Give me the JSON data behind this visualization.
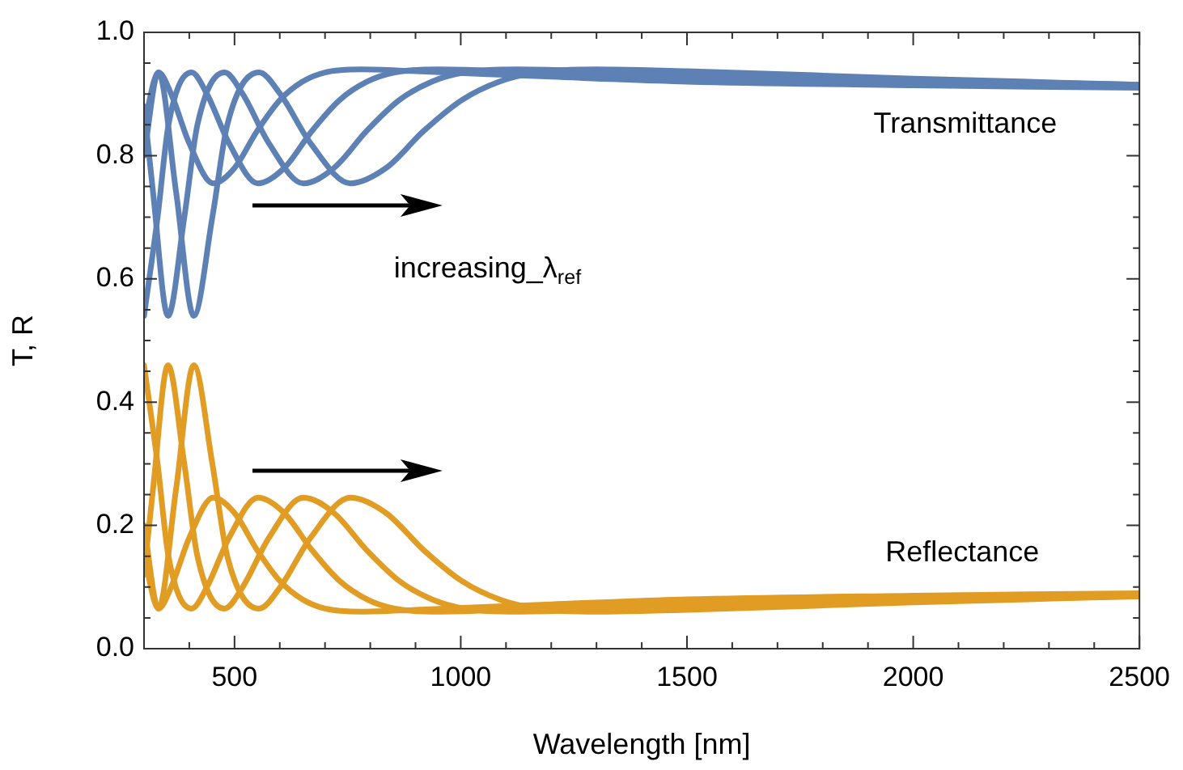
{
  "chart_data": {
    "type": "line",
    "xlabel": "Wavelength [nm]",
    "ylabel": "T, R",
    "xlim": [
      300,
      2500
    ],
    "ylim": [
      0,
      1
    ],
    "xticks": [
      {
        "value": 300,
        "label": null
      },
      {
        "value": 400,
        "label": null
      },
      500,
      {
        "value": 600,
        "label": null
      },
      {
        "value": 700,
        "label": null
      },
      {
        "value": 800,
        "label": null
      },
      {
        "value": 900,
        "label": null
      },
      1000,
      {
        "value": 1100,
        "label": null
      },
      {
        "value": 1200,
        "label": null
      },
      {
        "value": 1300,
        "label": null
      },
      {
        "value": 1400,
        "label": null
      },
      1500,
      {
        "value": 1600,
        "label": null
      },
      {
        "value": 1700,
        "label": null
      },
      {
        "value": 1800,
        "label": null
      },
      {
        "value": 1900,
        "label": null
      },
      2000,
      {
        "value": 2100,
        "label": null
      },
      {
        "value": 2200,
        "label": null
      },
      {
        "value": 2300,
        "label": null
      },
      {
        "value": 2400,
        "label": null
      },
      2500
    ],
    "yticks": [
      {
        "value": 0,
        "label": "0.0"
      },
      {
        "value": 0.05,
        "label": null
      },
      {
        "value": 0.1,
        "label": null
      },
      {
        "value": 0.15,
        "label": null
      },
      {
        "value": 0.2,
        "label": "0.2"
      },
      {
        "value": 0.25,
        "label": null
      },
      {
        "value": 0.3,
        "label": null
      },
      {
        "value": 0.35,
        "label": null
      },
      {
        "value": 0.4,
        "label": "0.4"
      },
      {
        "value": 0.45,
        "label": null
      },
      {
        "value": 0.5,
        "label": null
      },
      {
        "value": 0.55,
        "label": null
      },
      {
        "value": 0.6,
        "label": "0.6"
      },
      {
        "value": 0.65,
        "label": null
      },
      {
        "value": 0.7,
        "label": null
      },
      {
        "value": 0.75,
        "label": null
      },
      {
        "value": 0.8,
        "label": "0.8"
      },
      {
        "value": 0.85,
        "label": null
      },
      {
        "value": 0.9,
        "label": null
      },
      {
        "value": 0.95,
        "label": null
      },
      {
        "value": 1,
        "label": "1.0"
      }
    ],
    "grid": false,
    "legend": false,
    "marker": "none",
    "line_style": "solid",
    "series": [
      {
        "color": "#5e81b5",
        "x": [
          300,
          332,
          360,
          400,
          453,
          500,
          550,
          600,
          650,
          700,
          780,
          900,
          1200,
          1500,
          2000,
          2500
        ],
        "values": [
          0.85,
          0.935,
          0.9,
          0.82,
          0.755,
          0.78,
          0.84,
          0.89,
          0.92,
          0.935,
          0.94,
          0.937,
          0.928,
          0.92,
          0.914,
          0.91
        ]
      },
      {
        "color": "#5e81b5",
        "x": [
          300,
          330,
          354,
          405,
          439,
          488,
          552,
          610,
          671,
          732,
          793,
          854,
          950,
          1100,
          1460,
          1830,
          2440,
          2500
        ],
        "values": [
          0.54,
          0.7,
          0.85,
          0.935,
          0.9,
          0.82,
          0.755,
          0.78,
          0.84,
          0.89,
          0.92,
          0.935,
          0.94,
          0.937,
          0.928,
          0.92,
          0.914,
          0.913
        ]
      },
      {
        "color": "#5e81b5",
        "x": [
          300,
          320,
          353,
          389,
          418,
          478,
          518,
          576,
          652,
          720,
          792,
          864,
          936,
          1008,
          1123,
          1296,
          1728,
          2160,
          2500
        ],
        "values": [
          0.88,
          0.74,
          0.54,
          0.7,
          0.85,
          0.935,
          0.9,
          0.82,
          0.755,
          0.78,
          0.84,
          0.89,
          0.92,
          0.935,
          0.94,
          0.937,
          0.928,
          0.92,
          0.915
        ]
      },
      {
        "color": "#5e81b5",
        "x": [
          300,
          332,
          371,
          410,
          451,
          484,
          554,
          601,
          668,
          756,
          835,
          918,
          1002,
          1085,
          1169,
          1300,
          1500,
          2000,
          2500
        ],
        "values": [
          0.8,
          0.935,
          0.74,
          0.54,
          0.7,
          0.85,
          0.935,
          0.9,
          0.82,
          0.755,
          0.78,
          0.84,
          0.89,
          0.92,
          0.935,
          0.94,
          0.937,
          0.925,
          0.915
        ]
      },
      {
        "color": "#e19c24",
        "x": [
          300,
          332,
          360,
          400,
          453,
          500,
          550,
          600,
          650,
          700,
          780,
          900,
          1200,
          1500,
          2000,
          2500
        ],
        "values": [
          0.15,
          0.065,
          0.1,
          0.18,
          0.245,
          0.22,
          0.16,
          0.11,
          0.08,
          0.065,
          0.06,
          0.063,
          0.072,
          0.08,
          0.086,
          0.09
        ]
      },
      {
        "color": "#e19c24",
        "x": [
          300,
          330,
          354,
          405,
          439,
          488,
          552,
          610,
          671,
          732,
          793,
          854,
          950,
          1100,
          1460,
          1830,
          2440,
          2500
        ],
        "values": [
          0.46,
          0.3,
          0.15,
          0.065,
          0.1,
          0.18,
          0.245,
          0.22,
          0.16,
          0.11,
          0.08,
          0.065,
          0.06,
          0.063,
          0.072,
          0.08,
          0.086,
          0.087
        ]
      },
      {
        "color": "#e19c24",
        "x": [
          300,
          320,
          353,
          389,
          418,
          478,
          518,
          576,
          652,
          720,
          792,
          864,
          936,
          1008,
          1123,
          1296,
          1728,
          2160,
          2500
        ],
        "values": [
          0.12,
          0.26,
          0.46,
          0.3,
          0.15,
          0.065,
          0.1,
          0.18,
          0.245,
          0.22,
          0.16,
          0.11,
          0.08,
          0.065,
          0.06,
          0.063,
          0.072,
          0.08,
          0.085
        ]
      },
      {
        "color": "#e19c24",
        "x": [
          300,
          332,
          371,
          410,
          451,
          484,
          554,
          601,
          668,
          756,
          835,
          918,
          1002,
          1085,
          1169,
          1300,
          1500,
          2000,
          2500
        ],
        "values": [
          0.2,
          0.065,
          0.26,
          0.46,
          0.3,
          0.15,
          0.065,
          0.1,
          0.18,
          0.245,
          0.22,
          0.16,
          0.11,
          0.08,
          0.065,
          0.06,
          0.063,
          0.075,
          0.085
        ]
      }
    ],
    "annotations": [
      "Transmittance",
      "Reflectance",
      "increasing_λ$_{ref}$"
    ]
  }
}
